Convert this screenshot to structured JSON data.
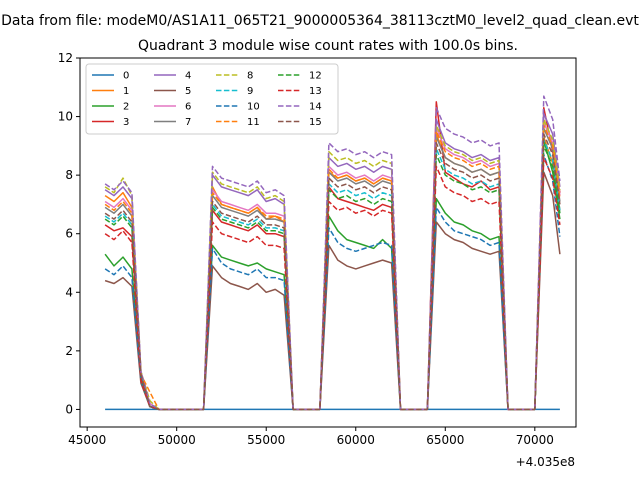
{
  "figure": {
    "suptitle": "Data from file: modeM0/AS1A11_065T21_9000005364_38113cztM0_level2_quad_clean.evt",
    "title": "Quadrant 3 module wise count rates with 100.0s bins.",
    "x_offset_label": "+4.035e8"
  },
  "chart_data": {
    "type": "line",
    "title": "Quadrant 3 module wise count rates with 100.0s bins.",
    "xlabel": "",
    "ylabel": "",
    "x_offset": 403500000,
    "xlim": [
      44600,
      72300
    ],
    "ylim": [
      -0.6,
      12.0
    ],
    "xticks": [
      45000,
      50000,
      55000,
      60000,
      65000,
      70000
    ],
    "xtick_labels": [
      "45000",
      "50000",
      "55000",
      "60000",
      "65000",
      "70000"
    ],
    "yticks": [
      0,
      2,
      4,
      6,
      8,
      10,
      12
    ],
    "ytick_labels": [
      "0",
      "2",
      "4",
      "6",
      "8",
      "10",
      "12"
    ],
    "grid": false,
    "legend_position": "upper-left",
    "legend_columns": 4,
    "x": [
      46000,
      46500,
      47000,
      47500,
      48000,
      48500,
      49000,
      49500,
      50000,
      50500,
      51000,
      51500,
      52000,
      52500,
      53000,
      53500,
      54000,
      54500,
      55000,
      55500,
      56000,
      56500,
      57000,
      57500,
      58000,
      58500,
      59000,
      59500,
      60000,
      60500,
      61000,
      61500,
      62000,
      62500,
      63000,
      63500,
      64000,
      64500,
      65000,
      65500,
      66000,
      66500,
      67000,
      67500,
      68000,
      68500,
      69000,
      69500,
      70000,
      70500,
      71000,
      71400
    ],
    "series": [
      {
        "name": "0",
        "color": "#1f77b4",
        "dash": "solid",
        "values": [
          0,
          0,
          0,
          0,
          0,
          0,
          0,
          0,
          0,
          0,
          0,
          0,
          0,
          0,
          0,
          0,
          0,
          0,
          0,
          0,
          0,
          0,
          0,
          0,
          0,
          0,
          0,
          0,
          0,
          0,
          0,
          0,
          0,
          0,
          0,
          0,
          0,
          0,
          0,
          0,
          0,
          0,
          0,
          0,
          0,
          0,
          0,
          0,
          0,
          0,
          0,
          0
        ]
      },
      {
        "name": "1",
        "color": "#ff7f0e",
        "dash": "solid",
        "values": [
          7.3,
          7.1,
          7.4,
          6.9,
          1.2,
          0.2,
          0,
          0,
          0,
          0,
          0,
          0,
          7.6,
          7.0,
          6.9,
          6.8,
          6.7,
          6.9,
          6.5,
          6.6,
          6.4,
          0,
          0,
          0,
          0,
          8.1,
          7.9,
          8.0,
          7.8,
          7.9,
          7.7,
          7.9,
          7.8,
          0,
          0,
          0,
          0,
          9.4,
          8.6,
          8.4,
          8.3,
          8.1,
          8.2,
          8.0,
          8.1,
          0,
          0,
          0,
          0,
          9.3,
          8.4,
          6.8
        ]
      },
      {
        "name": "2",
        "color": "#2ca02c",
        "dash": "solid",
        "values": [
          5.3,
          4.9,
          5.2,
          4.8,
          1.0,
          0.1,
          0,
          0,
          0,
          0,
          0,
          0,
          5.6,
          5.2,
          5.1,
          5.0,
          4.9,
          5.0,
          4.8,
          4.7,
          4.6,
          0,
          0,
          0,
          0,
          6.6,
          6.1,
          5.8,
          5.7,
          5.6,
          5.5,
          5.8,
          5.5,
          0,
          0,
          0,
          0,
          7.2,
          6.7,
          6.4,
          6.3,
          6.1,
          6.0,
          5.8,
          5.9,
          0,
          0,
          0,
          0,
          9.2,
          8.1,
          6.5
        ]
      },
      {
        "name": "3",
        "color": "#d62728",
        "dash": "solid",
        "values": [
          6.3,
          6.1,
          6.2,
          5.9,
          1.1,
          0.1,
          0,
          0,
          0,
          0,
          0,
          0,
          6.8,
          6.4,
          6.3,
          6.2,
          6.1,
          6.3,
          6.0,
          6.0,
          5.9,
          0,
          0,
          0,
          0,
          7.6,
          7.2,
          7.1,
          7.0,
          6.9,
          6.8,
          7.0,
          6.9,
          0,
          0,
          0,
          0,
          10.5,
          8.1,
          7.9,
          7.7,
          7.6,
          7.8,
          7.5,
          7.6,
          0,
          0,
          0,
          0,
          10.3,
          8.8,
          7.4
        ]
      },
      {
        "name": "4",
        "color": "#9467bd",
        "dash": "solid",
        "values": [
          7.5,
          7.3,
          7.6,
          7.2,
          1.3,
          0.2,
          0,
          0,
          0,
          0,
          0,
          0,
          8.0,
          7.6,
          7.5,
          7.4,
          7.3,
          7.5,
          7.1,
          7.2,
          7.0,
          0,
          0,
          0,
          0,
          8.6,
          8.3,
          8.4,
          8.2,
          8.3,
          8.1,
          8.3,
          8.2,
          0,
          0,
          0,
          0,
          9.9,
          9.1,
          8.9,
          8.8,
          8.6,
          8.7,
          8.5,
          8.6,
          0,
          0,
          0,
          0,
          10.1,
          9.4,
          7.6
        ]
      },
      {
        "name": "5",
        "color": "#8c564b",
        "dash": "solid",
        "values": [
          4.4,
          4.3,
          4.5,
          4.2,
          0.9,
          0.1,
          0,
          0,
          0,
          0,
          0,
          0,
          4.9,
          4.5,
          4.3,
          4.2,
          4.1,
          4.3,
          4.0,
          4.1,
          3.9,
          0,
          0,
          0,
          0,
          5.6,
          5.1,
          4.9,
          4.8,
          4.9,
          5.0,
          5.1,
          5.0,
          0,
          0,
          0,
          0,
          6.4,
          6.0,
          5.8,
          5.7,
          5.5,
          5.4,
          5.3,
          5.4,
          0,
          0,
          0,
          0,
          8.1,
          7.3,
          5.3
        ]
      },
      {
        "name": "6",
        "color": "#e377c2",
        "dash": "solid",
        "values": [
          7.1,
          6.9,
          7.2,
          6.8,
          1.2,
          0.2,
          0,
          0,
          0,
          0,
          0,
          0,
          7.5,
          7.1,
          7.0,
          6.9,
          6.8,
          7.0,
          6.7,
          6.7,
          6.6,
          0,
          0,
          0,
          0,
          8.3,
          8.0,
          8.1,
          7.9,
          8.0,
          7.8,
          8.0,
          7.9,
          0,
          0,
          0,
          0,
          9.6,
          8.9,
          8.7,
          8.6,
          8.4,
          8.5,
          8.3,
          8.4,
          0,
          0,
          0,
          0,
          9.8,
          9.1,
          7.3
        ]
      },
      {
        "name": "7",
        "color": "#7f7f7f",
        "dash": "solid",
        "values": [
          6.9,
          6.7,
          7.0,
          6.6,
          1.2,
          0.1,
          0,
          0,
          0,
          0,
          0,
          0,
          7.3,
          6.9,
          6.8,
          6.7,
          6.6,
          6.8,
          6.5,
          6.5,
          6.4,
          0,
          0,
          0,
          0,
          8.1,
          7.8,
          7.9,
          7.7,
          7.8,
          7.6,
          7.8,
          7.7,
          0,
          0,
          0,
          0,
          9.3,
          8.6,
          8.4,
          8.3,
          8.1,
          8.2,
          8.0,
          8.1,
          0,
          0,
          0,
          0,
          9.6,
          8.9,
          7.1
        ]
      },
      {
        "name": "8",
        "color": "#bcbd22",
        "dash": "dashed",
        "values": [
          7.6,
          7.4,
          7.9,
          7.3,
          1.3,
          0.3,
          0,
          0,
          0,
          0,
          0,
          0,
          8.1,
          7.7,
          7.6,
          7.5,
          7.4,
          7.6,
          7.2,
          7.3,
          7.1,
          0,
          0,
          0,
          0,
          8.8,
          8.5,
          8.6,
          8.4,
          8.5,
          8.3,
          8.5,
          8.4,
          0,
          0,
          0,
          0,
          9.7,
          9.0,
          8.8,
          8.7,
          8.5,
          8.6,
          8.4,
          8.5,
          0,
          0,
          0,
          0,
          9.9,
          9.2,
          7.5
        ]
      },
      {
        "name": "9",
        "color": "#17becf",
        "dash": "dashed",
        "values": [
          6.6,
          6.4,
          6.7,
          6.3,
          1.1,
          0.1,
          0,
          0,
          0,
          0,
          0,
          0,
          7.0,
          6.6,
          6.5,
          6.4,
          6.3,
          6.5,
          6.2,
          6.2,
          6.1,
          0,
          0,
          0,
          0,
          7.7,
          7.4,
          7.5,
          7.3,
          7.4,
          7.2,
          7.4,
          7.3,
          0,
          0,
          0,
          0,
          8.9,
          8.2,
          8.0,
          7.9,
          7.7,
          7.8,
          7.6,
          7.7,
          0,
          0,
          0,
          0,
          9.2,
          8.5,
          6.8
        ]
      },
      {
        "name": "10",
        "color": "#1f77b4",
        "dash": "dashed",
        "values": [
          4.8,
          4.6,
          4.9,
          4.5,
          1.0,
          0.1,
          0,
          0,
          0,
          0,
          0,
          0,
          5.5,
          5.0,
          4.8,
          4.7,
          4.6,
          4.8,
          4.5,
          4.5,
          4.4,
          0,
          0,
          0,
          0,
          6.2,
          5.7,
          5.5,
          5.4,
          5.5,
          5.6,
          5.7,
          5.6,
          0,
          0,
          0,
          0,
          6.9,
          6.4,
          6.1,
          6.0,
          5.9,
          5.8,
          5.6,
          5.7,
          0,
          0,
          0,
          0,
          8.7,
          7.8,
          5.9
        ]
      },
      {
        "name": "11",
        "color": "#ff7f0e",
        "dash": "dashed",
        "values": [
          7.0,
          6.8,
          7.1,
          6.7,
          1.2,
          0.6,
          0,
          0,
          0,
          0,
          0,
          0,
          7.4,
          7.0,
          6.9,
          6.8,
          6.7,
          6.9,
          6.6,
          6.6,
          6.5,
          0,
          0,
          0,
          0,
          8.2,
          7.9,
          8.0,
          7.8,
          7.9,
          7.7,
          7.9,
          7.8,
          0,
          0,
          0,
          0,
          9.5,
          8.8,
          8.6,
          8.5,
          8.3,
          8.4,
          8.2,
          8.3,
          0,
          0,
          0,
          0,
          9.7,
          9.0,
          7.2
        ]
      },
      {
        "name": "12",
        "color": "#2ca02c",
        "dash": "dashed",
        "values": [
          6.5,
          6.3,
          6.6,
          6.2,
          1.1,
          0.1,
          0,
          0,
          0,
          0,
          0,
          0,
          6.9,
          6.5,
          6.4,
          6.3,
          6.2,
          6.4,
          6.1,
          6.1,
          6.0,
          0,
          0,
          0,
          0,
          7.5,
          7.2,
          7.3,
          7.1,
          7.2,
          7.0,
          7.2,
          7.1,
          0,
          0,
          0,
          0,
          8.7,
          8.0,
          7.8,
          7.7,
          7.5,
          7.6,
          7.4,
          7.5,
          0,
          0,
          0,
          0,
          9.0,
          8.3,
          6.7
        ]
      },
      {
        "name": "13",
        "color": "#d62728",
        "dash": "dashed",
        "values": [
          6.0,
          5.8,
          6.1,
          5.7,
          1.0,
          0.1,
          0,
          0,
          0,
          0,
          0,
          0,
          6.4,
          6.0,
          5.9,
          5.8,
          5.7,
          5.9,
          5.6,
          5.6,
          5.5,
          0,
          0,
          0,
          0,
          7.1,
          6.8,
          6.9,
          6.7,
          6.8,
          6.6,
          6.8,
          6.7,
          0,
          0,
          0,
          0,
          8.3,
          7.6,
          7.4,
          7.3,
          7.1,
          7.2,
          7.0,
          7.1,
          0,
          0,
          0,
          0,
          8.6,
          7.9,
          6.3
        ]
      },
      {
        "name": "14",
        "color": "#9467bd",
        "dash": "dashed",
        "values": [
          7.7,
          7.5,
          7.8,
          7.4,
          1.3,
          0.2,
          0,
          0,
          0,
          0,
          0,
          0,
          8.3,
          7.9,
          7.8,
          7.7,
          7.6,
          7.8,
          7.4,
          7.5,
          7.3,
          0,
          0,
          0,
          0,
          9.1,
          8.8,
          8.9,
          8.7,
          8.8,
          8.6,
          8.8,
          8.7,
          0,
          0,
          0,
          0,
          10.3,
          9.6,
          9.4,
          9.3,
          9.1,
          9.2,
          9.0,
          9.1,
          0,
          0,
          0,
          0,
          10.7,
          9.9,
          7.8
        ]
      },
      {
        "name": "15",
        "color": "#8c564b",
        "dash": "dashed",
        "values": [
          6.7,
          6.5,
          6.8,
          6.4,
          1.2,
          0.1,
          0,
          0,
          0,
          0,
          0,
          0,
          7.1,
          6.7,
          6.6,
          6.5,
          6.4,
          6.6,
          6.3,
          6.3,
          6.2,
          0,
          0,
          0,
          0,
          7.9,
          7.6,
          7.7,
          7.5,
          7.6,
          7.4,
          7.6,
          7.5,
          0,
          0,
          0,
          0,
          9.1,
          8.4,
          8.2,
          8.1,
          7.9,
          8.0,
          7.8,
          7.9,
          0,
          0,
          0,
          0,
          9.4,
          8.7,
          7.0
        ]
      }
    ]
  }
}
